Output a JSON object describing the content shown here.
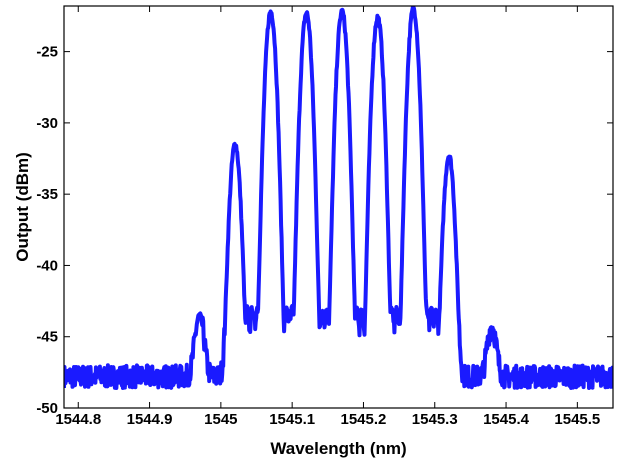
{
  "chart_data": {
    "type": "line",
    "title": "",
    "xlabel": "Wavelength (nm)",
    "ylabel": "Output (dBm)",
    "xlim": [
      1544.78,
      1545.55
    ],
    "ylim": [
      -50,
      -21.8
    ],
    "xticks": [
      1544.8,
      1544.9,
      1545,
      1545.1,
      1545.2,
      1545.3,
      1545.4,
      1545.5
    ],
    "xtick_labels": [
      "1544.8",
      "1544.9",
      "1545",
      "1545.1",
      "1545.2",
      "1545.3",
      "1545.4",
      "1545.5"
    ],
    "yticks": [
      -50,
      -45,
      -40,
      -35,
      -30,
      -25
    ],
    "ytick_labels": [
      "-50",
      "-45",
      "-40",
      "-35",
      "-30",
      "-25"
    ],
    "grid": false,
    "legend": "none",
    "series": [
      {
        "color": "#1a1aff",
        "noise_floor_dbm": -47.8,
        "peaks": [
          {
            "x": 1544.97,
            "y": -43.5
          },
          {
            "x": 1545.02,
            "y": -31.5
          },
          {
            "x": 1545.07,
            "y": -22.2
          },
          {
            "x": 1545.12,
            "y": -22.3
          },
          {
            "x": 1545.17,
            "y": -22.2
          },
          {
            "x": 1545.22,
            "y": -22.6
          },
          {
            "x": 1545.27,
            "y": -22.0
          },
          {
            "x": 1545.32,
            "y": -32.3
          },
          {
            "x": 1545.38,
            "y": -44.3
          }
        ],
        "troughs": [
          {
            "x": 1545.045,
            "y": -45.5
          },
          {
            "x": 1545.095,
            "y": -43.0
          },
          {
            "x": 1545.145,
            "y": -43.2
          },
          {
            "x": 1545.195,
            "y": -43.0
          },
          {
            "x": 1545.245,
            "y": -43.0
          },
          {
            "x": 1545.297,
            "y": -43.5
          },
          {
            "x": 1545.35,
            "y": -46.2
          }
        ]
      }
    ]
  }
}
